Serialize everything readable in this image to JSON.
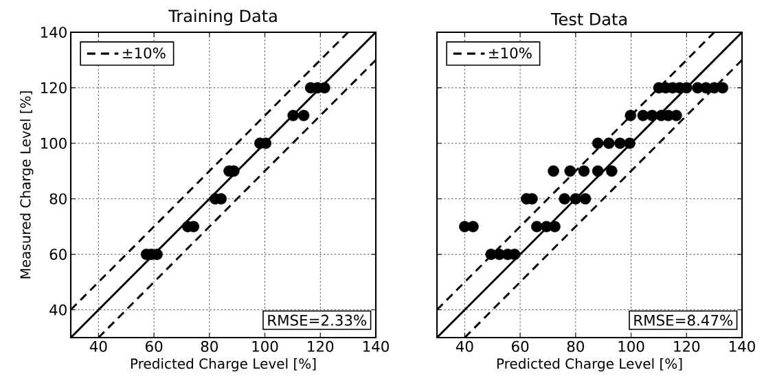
{
  "chart_data": [
    {
      "type": "scatter",
      "title": "Training Data",
      "xlabel": "Predicted Charge Level [%]",
      "ylabel": "Measured Charge Level [%]",
      "xlim": [
        30,
        140
      ],
      "ylim": [
        30,
        140
      ],
      "xticks": [
        40,
        60,
        80,
        100,
        120,
        140
      ],
      "yticks": [
        40,
        60,
        80,
        100,
        120,
        140
      ],
      "grid": true,
      "legend": "top left",
      "annotations": [
        "RMSE=2.33%"
      ],
      "series": [
        {
          "type": "scatter",
          "color": "#000000",
          "marker": "circle",
          "x": [
            116.5,
            119,
            121.5,
            110.2,
            114.0,
            98.2,
            100.3,
            87.1,
            88.8,
            82.1,
            84.2,
            72.2,
            74.3,
            57.3,
            59,
            61.1
          ],
          "values": [
            120,
            120,
            120,
            110,
            110,
            100,
            100,
            90,
            90,
            80,
            80,
            70,
            70,
            60,
            60,
            60
          ]
        },
        {
          "type": "line",
          "color": "#000000",
          "marker": "none",
          "line_style": "solid",
          "x": [
            30,
            140
          ],
          "values": [
            30,
            140
          ]
        },
        {
          "type": "line",
          "name": "±10%",
          "color": "#000000",
          "marker": "none",
          "line_style": "dashed",
          "x": [
            30,
            130
          ],
          "values": [
            40,
            140
          ]
        },
        {
          "type": "line",
          "color": "#000000",
          "marker": "none",
          "line_style": "dashed",
          "x": [
            40,
            140
          ],
          "values": [
            30,
            130
          ]
        }
      ]
    },
    {
      "type": "scatter",
      "title": "Test Data",
      "xlabel": "Predicted Charge Level [%]",
      "xlim": [
        30,
        140
      ],
      "ylim": [
        30,
        140
      ],
      "xticks": [
        40,
        60,
        80,
        100,
        120,
        140
      ],
      "yticks": [
        40,
        60,
        80,
        100,
        120,
        140
      ],
      "tick_labels": "x",
      "grid": true,
      "legend": "top left",
      "annotations": [
        "RMSE=8.47%"
      ],
      "series": [
        {
          "type": "scatter",
          "color": "#000000",
          "marker": "circle",
          "x": [
            110,
            112.5,
            115,
            117.5,
            120,
            124,
            127,
            130,
            133,
            99.8,
            104.3,
            107.6,
            110.9,
            113.4,
            116.3,
            88,
            92,
            96,
            99.5,
            72,
            78,
            83,
            88,
            93,
            62.3,
            64.3,
            76,
            80,
            83.5,
            40,
            43,
            66,
            69.5,
            72.5,
            49.5,
            52.5,
            55.5,
            58
          ],
          "values": [
            120,
            120,
            120,
            120,
            120,
            120,
            120,
            120,
            120,
            110,
            110,
            110,
            110,
            110,
            110,
            100,
            100,
            100,
            100,
            90,
            90,
            90,
            90,
            90,
            80,
            80,
            80,
            80,
            80,
            70,
            70,
            70,
            70,
            70,
            60,
            60,
            60,
            60
          ]
        },
        {
          "type": "line",
          "color": "#000000",
          "marker": "none",
          "line_style": "solid",
          "x": [
            30,
            140
          ],
          "values": [
            30,
            140
          ]
        },
        {
          "type": "line",
          "name": "±10%",
          "color": "#000000",
          "marker": "none",
          "line_style": "dashed",
          "x": [
            30,
            130
          ],
          "values": [
            40,
            140
          ]
        },
        {
          "type": "line",
          "color": "#000000",
          "marker": "none",
          "line_style": "dashed",
          "x": [
            40,
            140
          ],
          "values": [
            30,
            130
          ]
        }
      ]
    }
  ]
}
